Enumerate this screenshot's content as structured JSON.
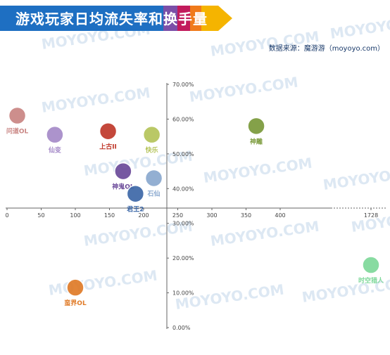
{
  "title": "游戏玩家日均流失率和换手量",
  "source": "数据来源：魔游游（moyoyo.com）",
  "watermark": "MOYOYO.COM",
  "colors": {
    "banner_blue": "#1e6fc2",
    "banner_purple": "#7b4fa8",
    "banner_magenta": "#c21b5c",
    "banner_orange": "#f07a1a",
    "banner_yellow": "#f5b400",
    "axis": "#666666",
    "tick_text": "#444444"
  },
  "chart_data": {
    "type": "scatter",
    "title": "游戏玩家日均流失率和换手量",
    "xlabel": "",
    "ylabel": "",
    "x_ticks": [
      "0",
      "50",
      "100",
      "150",
      "200",
      "250",
      "300",
      "350",
      "400",
      "1728"
    ],
    "y_ticks": [
      "0.00%",
      "10.00%",
      "20.00%",
      "30.00%",
      "40.00%",
      "50.00%",
      "60.00%",
      "70.00%"
    ],
    "ylim": [
      0,
      70
    ],
    "y_unit": "%",
    "x_axis_break": "400–1728",
    "grid": false,
    "points": [
      {
        "label": "问道OL",
        "x": 15,
        "y": 61,
        "color": "#c98583"
      },
      {
        "label": "仙变",
        "x": 70,
        "y": 55.5,
        "color": "#a58ac8"
      },
      {
        "label": "上古II",
        "x": 148,
        "y": 56.5,
        "color": "#c0392b"
      },
      {
        "label": "快乐",
        "x": 212,
        "y": 55.5,
        "color": "#b5c45a"
      },
      {
        "label": "神鬼OL",
        "x": 170,
        "y": 45,
        "color": "#6b4a9a"
      },
      {
        "label": "石仙",
        "x": 215,
        "y": 43,
        "color": "#8aa9cf"
      },
      {
        "label": "君王2",
        "x": 188,
        "y": 38.5,
        "color": "#3d68a8"
      },
      {
        "label": "神雕",
        "x": 365,
        "y": 58,
        "color": "#7a9a3a"
      },
      {
        "label": "蛮界OL",
        "x": 100,
        "y": 11.5,
        "color": "#e07b28"
      },
      {
        "label": "时空猎人",
        "x": 1728,
        "y": 18,
        "color": "#7ed89a"
      }
    ]
  }
}
